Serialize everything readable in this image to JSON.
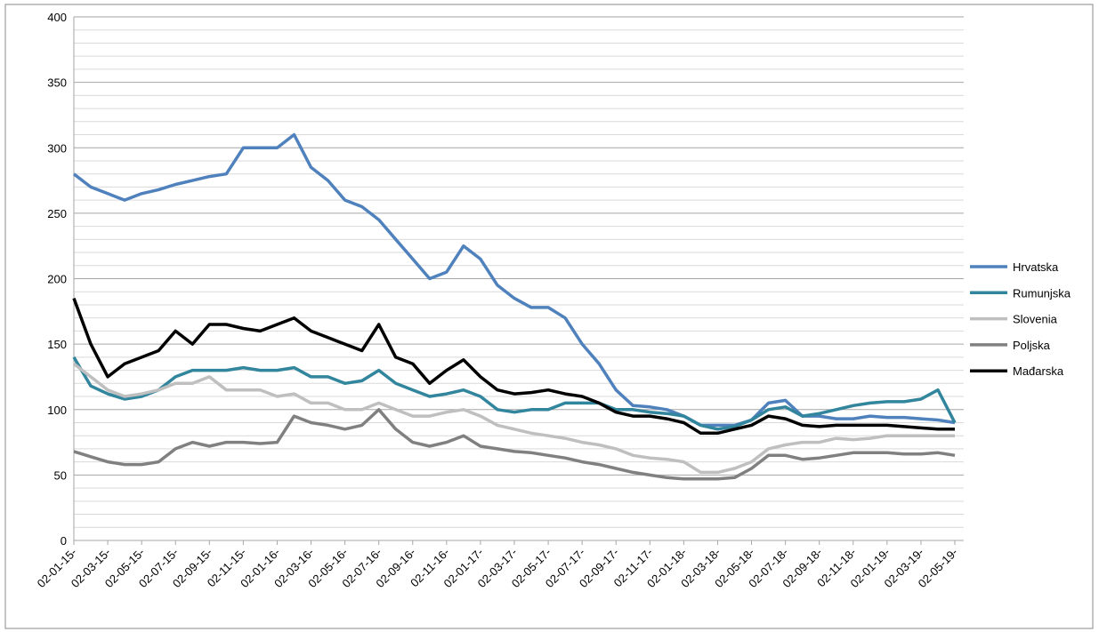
{
  "chart_data": {
    "type": "line",
    "categories": [
      "02-01-15-",
      null,
      "02-03-15-",
      null,
      "02-05-15-",
      null,
      "02-07-15-",
      null,
      "02-09-15-",
      null,
      "02-11-15-",
      null,
      "02-01-16-",
      null,
      "02-03-16-",
      null,
      "02-05-16-",
      null,
      "02-07-16-",
      null,
      "02-09-16-",
      null,
      "02-11-16-",
      null,
      "02-01-17-",
      null,
      "02-03-17-",
      null,
      "02-05-17-",
      null,
      "02-07-17-",
      null,
      "02-09-17-",
      null,
      "02-11-17-",
      null,
      "02-01-18-",
      null,
      "02-03-18-",
      null,
      "02-05-18-",
      null,
      "02-07-18-",
      null,
      "02-09-18-",
      null,
      "02-11-18-",
      null,
      "02-01-19-",
      null,
      "02-03-19-",
      null,
      "02-05-19-"
    ],
    "series": [
      {
        "name": "Hrvatska",
        "color": "#4f81bd",
        "values": [
          280,
          270,
          265,
          260,
          265,
          268,
          272,
          275,
          278,
          280,
          300,
          300,
          300,
          310,
          285,
          275,
          260,
          255,
          245,
          230,
          215,
          200,
          205,
          225,
          215,
          195,
          185,
          178,
          178,
          170,
          150,
          135,
          115,
          103,
          102,
          100,
          95,
          88,
          88,
          88,
          92,
          105,
          107,
          95,
          95,
          93,
          93,
          95,
          94,
          94,
          93,
          92,
          90
        ]
      },
      {
        "name": "Rumunjska",
        "color": "#31859c",
        "values": [
          140,
          118,
          112,
          108,
          110,
          115,
          125,
          130,
          130,
          130,
          132,
          130,
          130,
          132,
          125,
          125,
          120,
          122,
          130,
          120,
          115,
          110,
          112,
          115,
          110,
          100,
          98,
          100,
          100,
          105,
          105,
          105,
          100,
          100,
          98,
          97,
          95,
          88,
          85,
          87,
          92,
          100,
          102,
          95,
          97,
          100,
          103,
          105,
          106,
          106,
          108,
          115,
          90
        ]
      },
      {
        "name": "Slovenia",
        "color": "#bfbfbf",
        "values": [
          135,
          125,
          115,
          110,
          112,
          115,
          120,
          120,
          125,
          115,
          115,
          115,
          110,
          112,
          105,
          105,
          100,
          100,
          105,
          100,
          95,
          95,
          98,
          100,
          95,
          88,
          85,
          82,
          80,
          78,
          75,
          73,
          70,
          65,
          63,
          62,
          60,
          52,
          52,
          55,
          60,
          70,
          73,
          75,
          75,
          78,
          77,
          78,
          80,
          80,
          80,
          80,
          80
        ]
      },
      {
        "name": "Poljska",
        "color": "#808080",
        "values": [
          68,
          64,
          60,
          58,
          58,
          60,
          70,
          75,
          72,
          75,
          75,
          74,
          75,
          95,
          90,
          88,
          85,
          88,
          100,
          85,
          75,
          72,
          75,
          80,
          72,
          70,
          68,
          67,
          65,
          63,
          60,
          58,
          55,
          52,
          50,
          48,
          47,
          47,
          47,
          48,
          55,
          65,
          65,
          62,
          63,
          65,
          67,
          67,
          67,
          66,
          66,
          67,
          65
        ]
      },
      {
        "name": "Mađarska",
        "color": "#000000",
        "values": [
          185,
          150,
          125,
          135,
          140,
          145,
          160,
          150,
          165,
          165,
          162,
          160,
          165,
          170,
          160,
          155,
          150,
          145,
          165,
          140,
          135,
          120,
          130,
          138,
          125,
          115,
          112,
          113,
          115,
          112,
          110,
          105,
          98,
          95,
          95,
          93,
          90,
          82,
          82,
          85,
          88,
          95,
          93,
          88,
          87,
          88,
          88,
          88,
          88,
          87,
          86,
          85,
          85
        ]
      }
    ],
    "ylim": [
      0,
      400
    ],
    "yticks": [
      0,
      50,
      100,
      150,
      200,
      250,
      300,
      350,
      400
    ],
    "yminorticks": [
      10,
      20,
      30,
      40,
      60,
      70,
      80,
      90,
      110,
      120,
      130,
      140,
      160,
      170,
      180,
      190,
      210,
      220,
      230,
      240,
      260,
      270,
      280,
      290,
      310,
      320,
      330,
      340,
      360,
      370,
      380,
      390
    ],
    "grid": true,
    "legend": "right"
  }
}
